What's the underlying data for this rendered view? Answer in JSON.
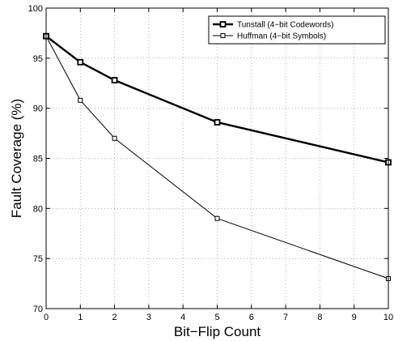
{
  "chart_data": {
    "type": "line",
    "title": "",
    "xlabel": "Bit−Flip Count",
    "ylabel": "Fault Coverage (%)",
    "xlim": [
      0,
      10
    ],
    "ylim": [
      70,
      100
    ],
    "xticks": [
      0,
      1,
      2,
      3,
      4,
      5,
      6,
      7,
      8,
      9,
      10
    ],
    "yticks": [
      70,
      75,
      80,
      85,
      90,
      95,
      100
    ],
    "grid": true,
    "legend_position": "top-right",
    "series": [
      {
        "name": "Tunstall (4−bit Codewords)",
        "x": [
          0,
          1,
          2,
          5,
          10
        ],
        "y": [
          97.2,
          94.6,
          92.8,
          88.6,
          84.6
        ],
        "color": "#000000",
        "line_width": "thick",
        "marker": "square"
      },
      {
        "name": "Huffman (4−bit Symbols)",
        "x": [
          0,
          1,
          2,
          5,
          10
        ],
        "y": [
          97.2,
          90.8,
          87.0,
          79.0,
          73.0
        ],
        "color": "#000000",
        "line_width": "thin",
        "marker": "square"
      }
    ]
  }
}
